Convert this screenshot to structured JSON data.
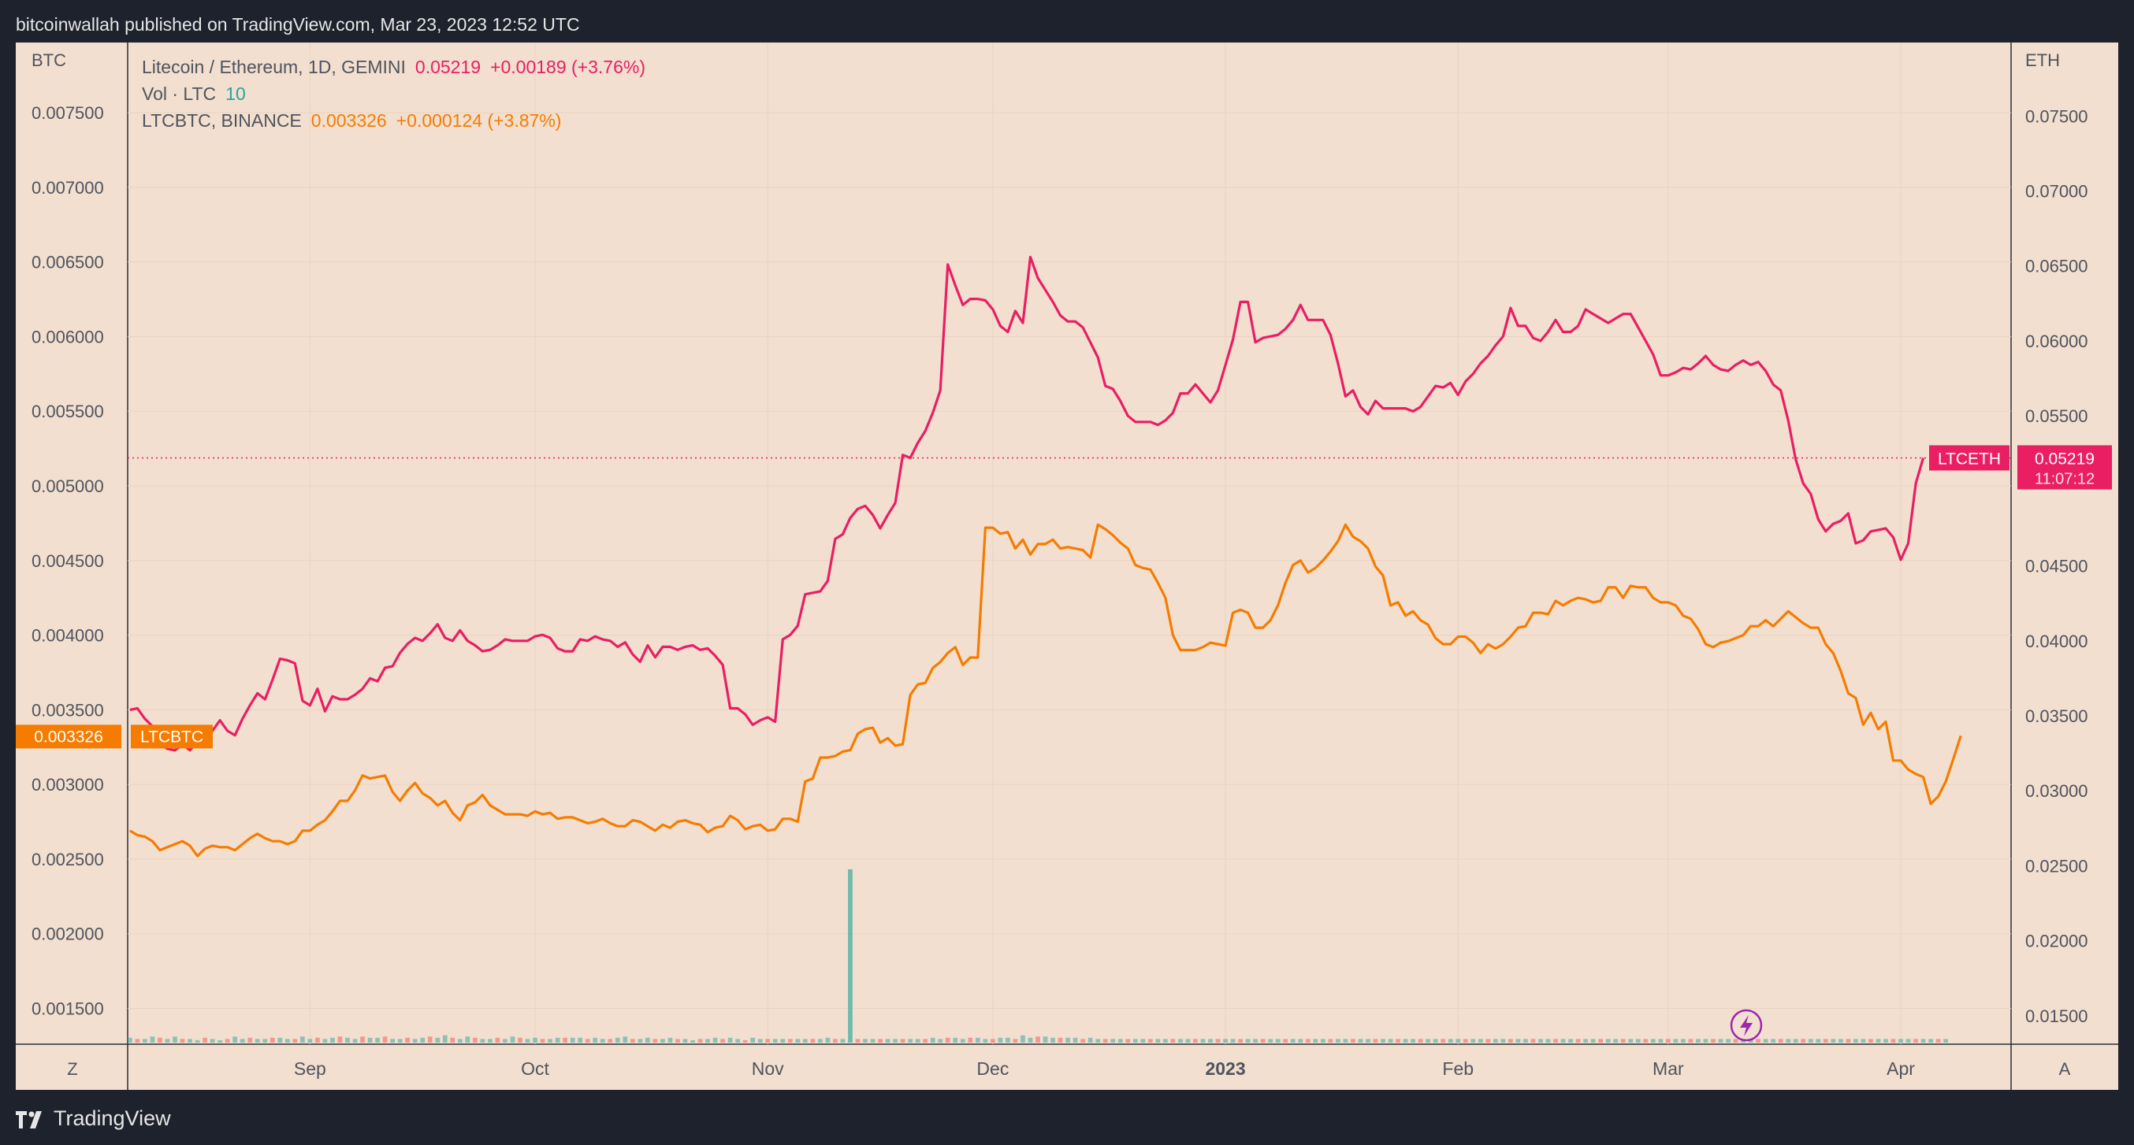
{
  "header": {
    "text": "bitcoinwallah published on TradingView.com, Mar 23, 2023 12:52 UTC"
  },
  "footer": {
    "brand": "TradingView"
  },
  "legend": {
    "row1": {
      "symbol": "Litecoin / Ethereum, 1D, GEMINI",
      "price": "0.05219",
      "change": "+0.00189 (+3.76%)"
    },
    "row2": {
      "symbol": "Vol · LTC",
      "value": "10"
    },
    "row3": {
      "symbol": "LTCBTC, BINANCE",
      "price": "0.003326",
      "change": "+0.000124 (+3.87%)"
    }
  },
  "colors": {
    "ltceth": "#e91e63",
    "ltcbtc": "#f57c00",
    "vol_up": "#26a69a",
    "vol_down": "#ef5350",
    "background": "#f2dfcf",
    "frame": "#1e222d"
  },
  "chart_data": {
    "type": "line",
    "left_axis": {
      "title": "BTC",
      "range": [
        0.00126,
        0.00797
      ],
      "ticks": [
        "0.007500",
        "0.007000",
        "0.006500",
        "0.006000",
        "0.005500",
        "0.005000",
        "0.004500",
        "0.004000",
        "0.003500",
        "0.003000",
        "0.002500",
        "0.002000",
        "0.001500"
      ]
    },
    "right_axis": {
      "title": "ETH",
      "range": [
        0.0131,
        0.0799
      ],
      "ticks": [
        "0.07500",
        "0.07000",
        "0.06500",
        "0.06000",
        "0.05500",
        "0.04500",
        "0.04000",
        "0.03500",
        "0.03000",
        "0.02500",
        "0.02000",
        "0.01500"
      ]
    },
    "x_labels": [
      "Sep",
      "Oct",
      "Nov",
      "Dec",
      "2023",
      "Feb",
      "Mar",
      "Apr"
    ],
    "x_start": "Aug 8",
    "x_end": "Apr 15",
    "corner_left": "Z",
    "corner_right": "A",
    "badges": {
      "ltcbtc_price": "0.003326",
      "ltcbtc_name": "LTCBTC",
      "ltceth_name": "LTCETH",
      "ltceth_price": "0.05219",
      "ltceth_countdown": "11:07:12"
    },
    "series": [
      {
        "name": "LTCETH",
        "axis": "right",
        "values": [
          0.0354,
          0.0355,
          0.0348,
          0.0343,
          0.0331,
          0.0328,
          0.0327,
          0.0331,
          0.0327,
          0.0333,
          0.0338,
          0.034,
          0.0347,
          0.034,
          0.0337,
          0.0348,
          0.0357,
          0.0365,
          0.0361,
          0.0374,
          0.0388,
          0.0387,
          0.0385,
          0.036,
          0.0357,
          0.0368,
          0.0353,
          0.0363,
          0.0361,
          0.0361,
          0.0364,
          0.0368,
          0.0375,
          0.0373,
          0.0382,
          0.0383,
          0.0392,
          0.0398,
          0.0402,
          0.04,
          0.0405,
          0.0411,
          0.0402,
          0.04,
          0.0407,
          0.04,
          0.0397,
          0.0393,
          0.0394,
          0.0397,
          0.0401,
          0.04,
          0.04,
          0.04,
          0.0403,
          0.0404,
          0.0402,
          0.0395,
          0.0393,
          0.0393,
          0.0401,
          0.04,
          0.0403,
          0.0401,
          0.04,
          0.0396,
          0.0399,
          0.0391,
          0.0386,
          0.0397,
          0.0389,
          0.0396,
          0.0396,
          0.0394,
          0.0396,
          0.0397,
          0.0394,
          0.0395,
          0.039,
          0.0384,
          0.0355,
          0.0355,
          0.0351,
          0.0344,
          0.0347,
          0.0349,
          0.0346,
          0.0401,
          0.0404,
          0.041,
          0.0431,
          0.0432,
          0.0433,
          0.044,
          0.0468,
          0.0471,
          0.0482,
          0.0488,
          0.049,
          0.0484,
          0.0475,
          0.0484,
          0.0492,
          0.0524,
          0.0522,
          0.0532,
          0.054,
          0.0552,
          0.0567,
          0.0651,
          0.0637,
          0.0624,
          0.0628,
          0.0628,
          0.0627,
          0.0621,
          0.061,
          0.0606,
          0.062,
          0.0612,
          0.0656,
          0.0642,
          0.0634,
          0.0626,
          0.0617,
          0.0613,
          0.0613,
          0.0609,
          0.0599,
          0.0589,
          0.057,
          0.0568,
          0.056,
          0.055,
          0.0546,
          0.0546,
          0.0546,
          0.0544,
          0.0547,
          0.0552,
          0.0565,
          0.0565,
          0.0571,
          0.0565,
          0.0559,
          0.0567,
          0.0584,
          0.0601,
          0.0626,
          0.0626,
          0.0599,
          0.0602,
          0.0603,
          0.0604,
          0.0608,
          0.0614,
          0.0624,
          0.0614,
          0.0614,
          0.0614,
          0.0604,
          0.0585,
          0.0563,
          0.0567,
          0.0556,
          0.0551,
          0.056,
          0.0555,
          0.0555,
          0.0555,
          0.0555,
          0.0553,
          0.0556,
          0.0563,
          0.057,
          0.0569,
          0.0572,
          0.0564,
          0.0573,
          0.0578,
          0.0585,
          0.059,
          0.0597,
          0.0603,
          0.0622,
          0.061,
          0.061,
          0.0602,
          0.06,
          0.0606,
          0.0614,
          0.0606,
          0.0606,
          0.061,
          0.0621,
          0.0618,
          0.0615,
          0.0612,
          0.0615,
          0.0618,
          0.0618,
          0.0609,
          0.06,
          0.0591,
          0.0577,
          0.0577,
          0.0579,
          0.0582,
          0.0581,
          0.0585,
          0.059,
          0.0584,
          0.0581,
          0.058,
          0.0584,
          0.0587,
          0.0584,
          0.0586,
          0.058,
          0.0571,
          0.0567,
          0.0547,
          0.0521,
          0.0505,
          0.0498,
          0.0481,
          0.0473,
          0.0478,
          0.048,
          0.0485,
          0.0465,
          0.0467,
          0.0473,
          0.0474,
          0.0475,
          0.0469,
          0.0454,
          0.0465,
          0.0505,
          0.0522
        ]
      },
      {
        "name": "LTCBTC",
        "axis": "left",
        "values": [
          0.00269,
          0.00266,
          0.00265,
          0.00262,
          0.00256,
          0.00258,
          0.0026,
          0.00262,
          0.00259,
          0.00252,
          0.00257,
          0.00259,
          0.00258,
          0.00258,
          0.00256,
          0.0026,
          0.00264,
          0.00267,
          0.00264,
          0.00262,
          0.00262,
          0.0026,
          0.00262,
          0.00269,
          0.00269,
          0.00273,
          0.00276,
          0.00282,
          0.00289,
          0.00289,
          0.00296,
          0.00306,
          0.00304,
          0.00305,
          0.00306,
          0.00295,
          0.00289,
          0.00296,
          0.00301,
          0.00294,
          0.00291,
          0.00286,
          0.00289,
          0.00281,
          0.00276,
          0.00286,
          0.00288,
          0.00293,
          0.00286,
          0.00283,
          0.0028,
          0.0028,
          0.0028,
          0.00279,
          0.00282,
          0.0028,
          0.00281,
          0.00277,
          0.00278,
          0.00278,
          0.00276,
          0.00274,
          0.00275,
          0.00277,
          0.00274,
          0.00272,
          0.00272,
          0.00276,
          0.00275,
          0.00272,
          0.00269,
          0.00273,
          0.00271,
          0.00275,
          0.00276,
          0.00274,
          0.00273,
          0.00268,
          0.00271,
          0.00272,
          0.00279,
          0.00276,
          0.0027,
          0.00272,
          0.00273,
          0.00269,
          0.0027,
          0.00277,
          0.00277,
          0.00275,
          0.00302,
          0.00304,
          0.00318,
          0.00318,
          0.00319,
          0.00322,
          0.00323,
          0.00334,
          0.00337,
          0.00338,
          0.00328,
          0.00331,
          0.00326,
          0.00327,
          0.0036,
          0.00367,
          0.00368,
          0.00378,
          0.00382,
          0.00388,
          0.00392,
          0.0038,
          0.00385,
          0.00385,
          0.00472,
          0.00472,
          0.00468,
          0.00469,
          0.00458,
          0.00464,
          0.00454,
          0.00461,
          0.00461,
          0.00464,
          0.00458,
          0.00459,
          0.00458,
          0.00457,
          0.00452,
          0.00474,
          0.00471,
          0.00467,
          0.00462,
          0.00458,
          0.00447,
          0.00445,
          0.00444,
          0.00435,
          0.00425,
          0.004,
          0.0039,
          0.0039,
          0.0039,
          0.00392,
          0.00395,
          0.00394,
          0.00393,
          0.00415,
          0.00417,
          0.00415,
          0.00405,
          0.00405,
          0.0041,
          0.0042,
          0.00435,
          0.00447,
          0.0045,
          0.00442,
          0.00445,
          0.0045,
          0.00456,
          0.00463,
          0.00474,
          0.00466,
          0.00463,
          0.00458,
          0.00446,
          0.0044,
          0.0042,
          0.00422,
          0.00413,
          0.00416,
          0.0041,
          0.00407,
          0.00398,
          0.00394,
          0.00394,
          0.00399,
          0.00399,
          0.00395,
          0.00388,
          0.00394,
          0.00391,
          0.00394,
          0.00399,
          0.00405,
          0.00406,
          0.00415,
          0.00415,
          0.00414,
          0.00423,
          0.0042,
          0.00423,
          0.00425,
          0.00424,
          0.00422,
          0.00423,
          0.00432,
          0.00432,
          0.00425,
          0.00433,
          0.00432,
          0.00432,
          0.00425,
          0.00422,
          0.00422,
          0.0042,
          0.00413,
          0.00411,
          0.00404,
          0.00394,
          0.00392,
          0.00395,
          0.00396,
          0.00398,
          0.004,
          0.00406,
          0.00406,
          0.0041,
          0.00406,
          0.00411,
          0.00416,
          0.00412,
          0.00408,
          0.00405,
          0.00405,
          0.00394,
          0.00388,
          0.00376,
          0.00361,
          0.00358,
          0.0034,
          0.00348,
          0.00337,
          0.00342,
          0.00316,
          0.00316,
          0.0031,
          0.00307,
          0.00305,
          0.00287,
          0.00292,
          0.00302,
          0.00317,
          0.003326
        ]
      }
    ],
    "volume": {
      "axis_max": 20,
      "spike_index": 96,
      "spike_value": 14.2,
      "values": [
        0.4,
        0.3,
        0.3,
        0.5,
        0.4,
        0.3,
        0.5,
        0.3,
        0.3,
        0.2,
        0.4,
        0.3,
        0.2,
        0.3,
        0.5,
        0.3,
        0.4,
        0.3,
        0.3,
        0.4,
        0.4,
        0.3,
        0.3,
        0.5,
        0.3,
        0.4,
        0.3,
        0.4,
        0.5,
        0.4,
        0.3,
        0.5,
        0.4,
        0.4,
        0.5,
        0.3,
        0.3,
        0.4,
        0.3,
        0.4,
        0.5,
        0.4,
        0.6,
        0.4,
        0.3,
        0.5,
        0.4,
        0.3,
        0.3,
        0.4,
        0.3,
        0.5,
        0.4,
        0.3,
        0.4,
        0.3,
        0.3,
        0.4,
        0.4,
        0.4,
        0.4,
        0.3,
        0.4,
        0.3,
        0.3,
        0.4,
        0.5,
        0.3,
        0.3,
        0.4,
        0.3,
        0.3,
        0.4,
        0.3,
        0.3,
        0.2,
        0.3,
        0.3,
        0.4,
        0.3,
        0.4,
        0.3,
        0.2,
        0.4,
        0.3,
        0.3,
        0.3,
        0.3,
        0.3,
        0.3,
        0.3,
        0.3,
        0.3,
        0.4,
        0.3,
        0.3,
        14.2,
        0.3,
        0.3,
        0.3,
        0.3,
        0.3,
        0.3,
        0.3,
        0.3,
        0.3,
        0.3,
        0.4,
        0.3,
        0.4,
        0.4,
        0.3,
        0.4,
        0.4,
        0.3,
        0.3,
        0.4,
        0.4,
        0.3,
        0.6,
        0.4,
        0.5,
        0.5,
        0.4,
        0.4,
        0.4,
        0.4,
        0.3,
        0.4,
        0.3,
        0.3,
        0.3,
        0.3,
        0.3,
        0.3,
        0.3,
        0.3,
        0.3,
        0.3,
        0.3,
        0.3,
        0.3,
        0.3,
        0.3,
        0.3,
        0.3,
        0.3,
        0.3,
        0.3,
        0.3,
        0.3,
        0.3,
        0.3,
        0.3,
        0.3,
        0.3,
        0.3,
        0.3,
        0.3,
        0.3,
        0.3,
        0.3,
        0.3,
        0.3,
        0.3,
        0.3,
        0.3,
        0.3,
        0.3,
        0.3,
        0.3,
        0.3,
        0.3,
        0.3,
        0.3,
        0.3,
        0.3,
        0.3,
        0.3,
        0.3,
        0.3,
        0.3,
        0.3,
        0.3,
        0.3,
        0.3,
        0.3,
        0.3,
        0.3,
        0.3,
        0.3,
        0.3,
        0.3,
        0.3,
        0.3,
        0.3,
        0.3,
        0.3,
        0.3,
        0.3,
        0.3,
        0.3,
        0.3,
        0.3,
        0.3,
        0.3,
        0.3,
        0.3,
        0.3,
        0.3,
        0.3,
        0.3,
        0.3,
        0.3,
        0.3,
        0.3,
        0.3,
        0.3,
        0.3,
        0.3,
        0.3,
        0.3,
        0.3,
        0.3,
        0.3,
        0.3,
        0.3,
        0.3,
        0.3,
        0.3,
        0.3,
        0.3,
        0.3,
        0.3,
        0.3,
        0.3,
        0.3,
        0.3,
        0.3,
        0.3,
        0.3,
        0.3,
        0.3
      ],
      "directions": "mixed"
    }
  }
}
